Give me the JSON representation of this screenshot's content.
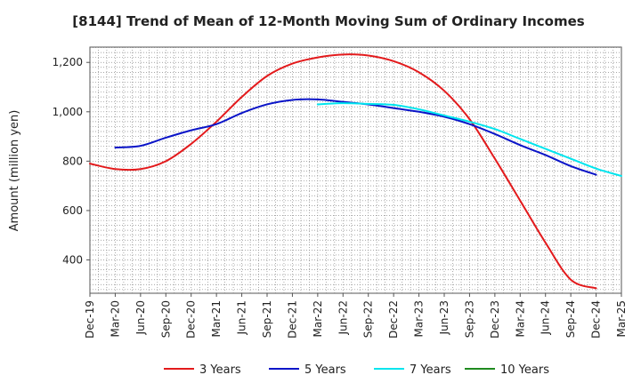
{
  "chart_data": {
    "type": "line",
    "title": "[8144]  Trend of Mean of 12-Month Moving Sum of Ordinary Incomes",
    "xlabel": "",
    "ylabel": "Amount (million yen)",
    "ylim": [
      265,
      1262
    ],
    "yticks": [
      400,
      600,
      800,
      1000,
      1200
    ],
    "ytick_labels": [
      "400",
      "600",
      "800",
      "1,000",
      "1,200"
    ],
    "x_tick_labels": [
      "Dec-19",
      "Mar-20",
      "Jun-20",
      "Sep-20",
      "Dec-20",
      "Mar-21",
      "Jun-21",
      "Sep-21",
      "Dec-21",
      "Mar-22",
      "Jun-22",
      "Sep-22",
      "Dec-22",
      "Mar-23",
      "Jun-23",
      "Sep-23",
      "Dec-23",
      "Mar-24",
      "Jun-24",
      "Sep-24",
      "Dec-24",
      "Mar-25"
    ],
    "grid": true,
    "legend_position": "bottom",
    "series": [
      {
        "name": "3 Years",
        "color": "#e31a1c",
        "start_index": 0,
        "values": [
          790,
          768,
          768,
          800,
          870,
          960,
          1060,
          1145,
          1195,
          1220,
          1232,
          1228,
          1205,
          1160,
          1085,
          970,
          810,
          640,
          470,
          320,
          285
        ]
      },
      {
        "name": "5 Years",
        "color": "#0a14c8",
        "start_index": 1,
        "values": [
          855,
          862,
          895,
          925,
          950,
          995,
          1030,
          1048,
          1050,
          1040,
          1030,
          1015,
          1000,
          980,
          950,
          910,
          865,
          825,
          780,
          745
        ]
      },
      {
        "name": "7 Years",
        "color": "#00e5ee",
        "start_index": 9,
        "values": [
          1030,
          1035,
          1032,
          1028,
          1010,
          985,
          960,
          930,
          890,
          850,
          810,
          770,
          740
        ]
      },
      {
        "name": "10 Years",
        "color": "#1f8a1f",
        "start_index": 0,
        "values": []
      }
    ]
  }
}
